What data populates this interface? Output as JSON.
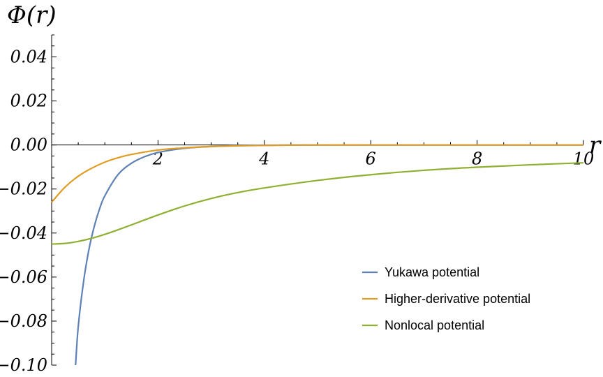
{
  "chart_data": {
    "type": "line",
    "title": "",
    "xlabel": "r",
    "ylabel": "Φ(r)",
    "xlim": [
      0,
      10
    ],
    "ylim": [
      -0.1,
      0.05
    ],
    "x_ticks": [
      2,
      4,
      6,
      8,
      10
    ],
    "x_tick_labels": [
      "2",
      "4",
      "6",
      "8",
      "10"
    ],
    "y_ticks": [
      0.04,
      0.02,
      0.0,
      -0.02,
      -0.04,
      -0.06,
      -0.08,
      -0.1
    ],
    "y_tick_labels": [
      "0.04",
      "0.02",
      "0.00",
      "−0.02",
      "−0.04",
      "−0.06",
      "−0.08",
      "−0.10"
    ],
    "grid": false,
    "legend_position": "bottom-right",
    "x": [
      0.0,
      0.25,
      0.5,
      0.75,
      1.0,
      1.25,
      1.5,
      2.0,
      2.5,
      3.0,
      3.5,
      4.0,
      5.0,
      6.0,
      7.0,
      8.0,
      9.0,
      10.0
    ],
    "series": [
      {
        "name": "Yukawa potential",
        "color": "#5E81B5",
        "x": [
          0.45,
          0.5,
          0.6,
          0.7,
          0.8,
          0.9,
          1.0,
          1.25,
          1.5,
          1.75,
          2.0,
          2.5,
          3.0,
          3.5,
          4.0,
          5.0,
          6.0,
          8.0,
          10.0
        ],
        "values": [
          -0.1,
          -0.0825,
          -0.0621,
          -0.0476,
          -0.0371,
          -0.0291,
          -0.0231,
          -0.0134,
          -0.0083,
          -0.0053,
          -0.0034,
          -0.0015,
          -0.0007,
          -0.0003,
          -0.0001,
          0.0,
          0.0,
          0.0,
          0.0
        ]
      },
      {
        "name": "Higher-derivative potential",
        "color": "#E19C24",
        "values": [
          -0.026,
          -0.0192,
          -0.0142,
          -0.0106,
          -0.0078,
          -0.0058,
          -0.0043,
          -0.0023,
          -0.0013,
          -0.0007,
          -0.0004,
          -0.0002,
          0.0,
          0.0,
          0.0,
          0.0,
          0.0,
          0.0
        ]
      },
      {
        "name": "Nonlocal potential",
        "color": "#8FB032",
        "values": [
          -0.045,
          -0.0447,
          -0.0438,
          -0.0424,
          -0.0406,
          -0.0385,
          -0.0363,
          -0.0318,
          -0.0277,
          -0.0243,
          -0.0216,
          -0.0195,
          -0.0161,
          -0.0135,
          -0.0115,
          -0.0101,
          -0.009,
          -0.0081
        ]
      }
    ]
  }
}
